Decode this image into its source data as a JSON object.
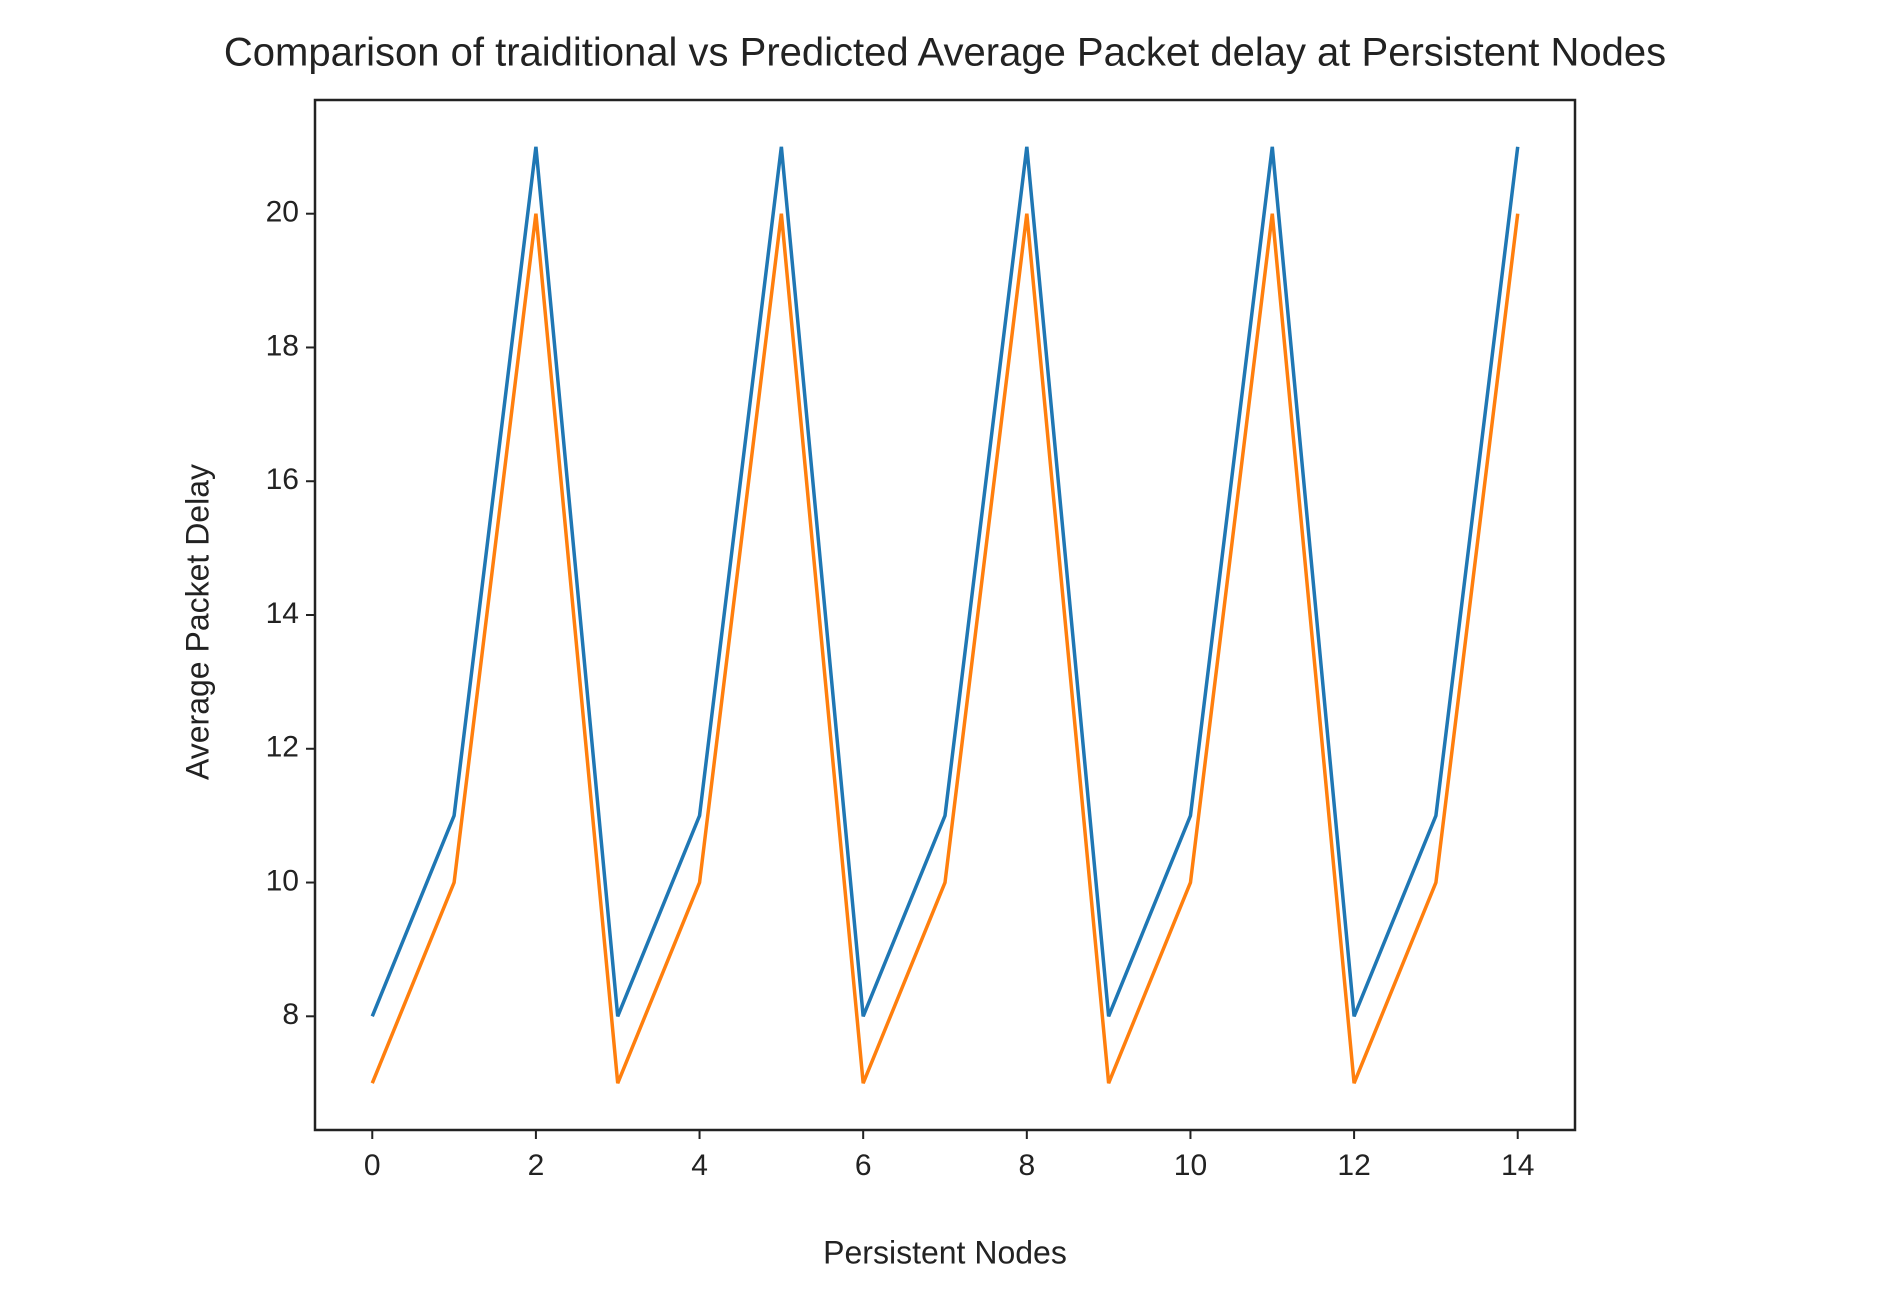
{
  "chart_data": {
    "type": "line",
    "title": "Comparison of traiditional vs Predicted Average Packet delay at Persistent Nodes",
    "x_label": "Persistent Nodes",
    "y_label": "Average Packet Delay",
    "x": [
      0,
      1,
      2,
      3,
      4,
      5,
      6,
      7,
      8,
      9,
      10,
      11,
      12,
      13,
      14
    ],
    "series": [
      {
        "color": "#1f77b4",
        "values": [
          8,
          11,
          21,
          8,
          11,
          21,
          8,
          11,
          21,
          8,
          11,
          21,
          8,
          11,
          21
        ]
      },
      {
        "color": "#ff7f0e",
        "values": [
          7,
          10,
          20,
          7,
          10,
          20,
          7,
          10,
          20,
          7,
          10,
          20,
          7,
          10,
          20
        ]
      }
    ],
    "xlim": [
      -0.7,
      14.7
    ],
    "ylim": [
      6.3,
      21.7
    ],
    "xticks": [
      0,
      2,
      4,
      6,
      8,
      10,
      12,
      14
    ],
    "yticks": [
      8,
      10,
      12,
      14,
      16,
      18,
      20
    ],
    "grid": false
  }
}
